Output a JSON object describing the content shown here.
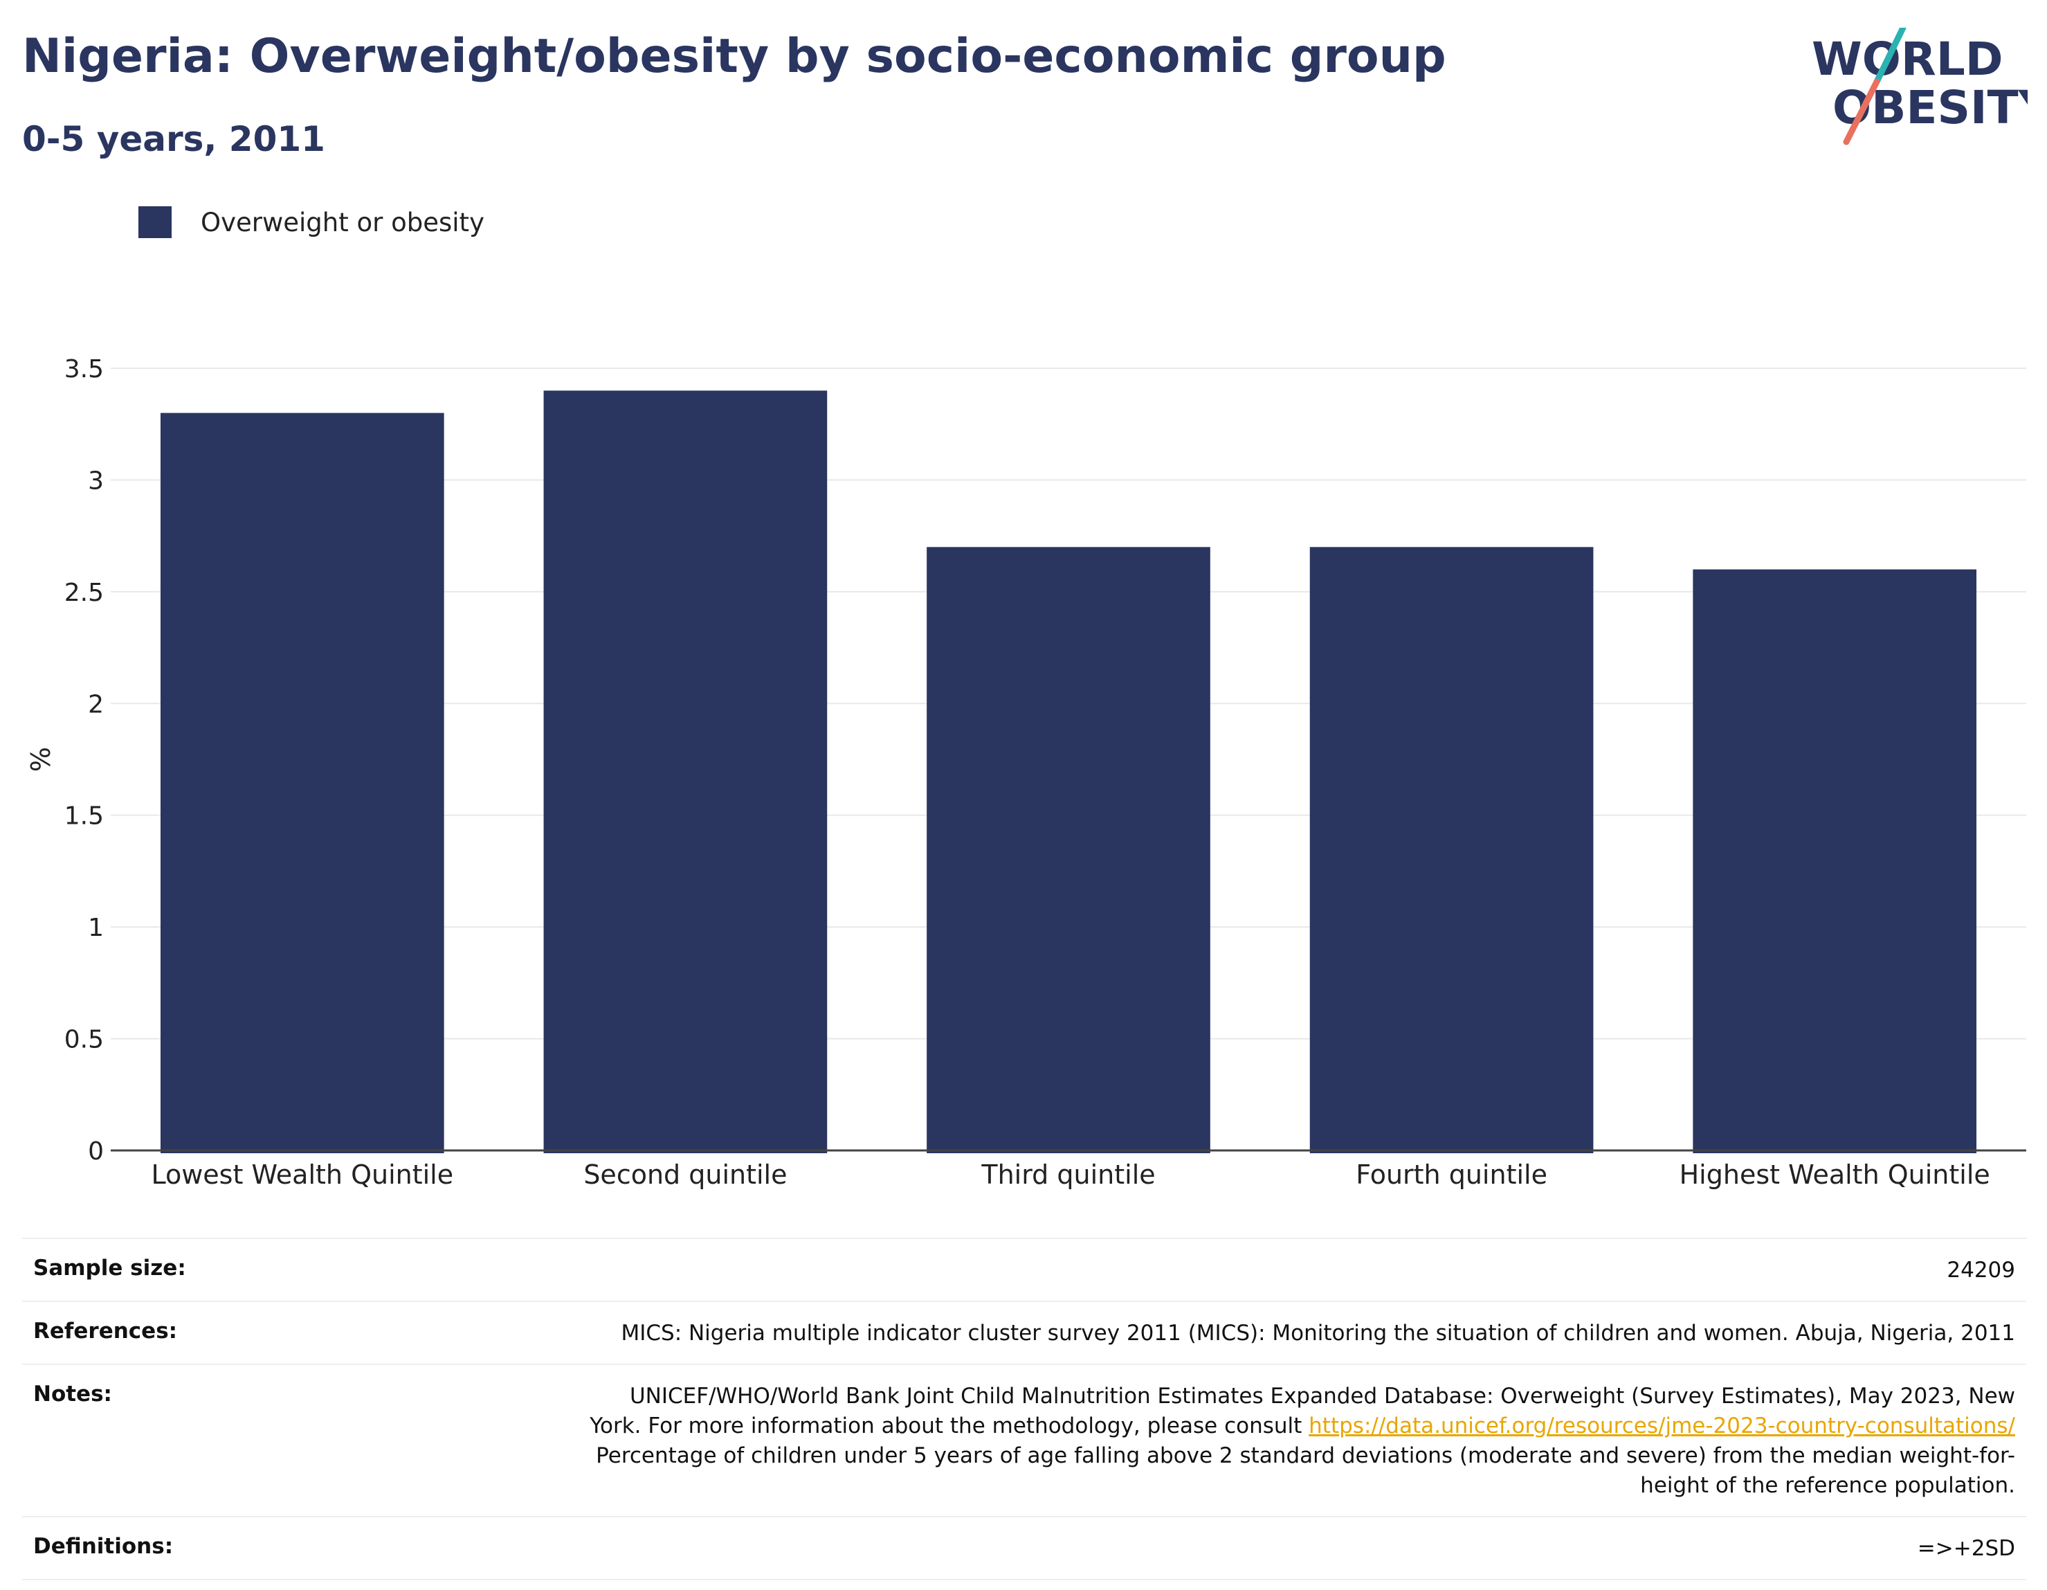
{
  "title": "Nigeria: Overweight/obesity by socio-economic group",
  "subtitle": "0-5 years, 2011",
  "logo": {
    "line1": "WORLD",
    "line2": "OBESITY",
    "colors": {
      "text": "#2a3560",
      "teal": "#2ab3b1",
      "coral": "#e8705f"
    }
  },
  "legend": {
    "label": "Overweight or obesity",
    "color": "#2a3560"
  },
  "chart_data": {
    "type": "bar",
    "categories": [
      "Lowest Wealth Quintile",
      "Second quintile",
      "Third quintile",
      "Fourth quintile",
      "Highest Wealth Quintile"
    ],
    "series": [
      {
        "name": "Overweight or obesity",
        "values": [
          3.3,
          3.4,
          2.7,
          2.7,
          2.6
        ],
        "color": "#2a3560"
      }
    ],
    "ylabel": "%",
    "ylim": [
      0,
      3.5
    ],
    "yticks": [
      0,
      0.5,
      1,
      1.5,
      2,
      2.5,
      3,
      3.5
    ],
    "ytick_labels": [
      "0",
      "0.5",
      "1",
      "1.5",
      "2",
      "2.5",
      "3",
      "3.5"
    ],
    "grid": true,
    "legend_position": "top-left"
  },
  "info": {
    "sample_size": {
      "label": "Sample size:",
      "value": "24209"
    },
    "references": {
      "label": "References:",
      "value": "MICS: Nigeria multiple indicator cluster survey 2011 (MICS): Monitoring the situation of children and women. Abuja, Nigeria, 2011"
    },
    "notes": {
      "label": "Notes:",
      "line1": "UNICEF/WHO/World Bank Joint Child Malnutrition Estimates Expanded Database: Overweight (Survey Estimates), May 2023, New",
      "line2_prefix": "York. For more information about the methodology, please consult ",
      "link": "https://data.unicef.org/resources/jme-2023-country-consultations/",
      "line3": "Percentage of children under 5 years of age falling above 2 standard deviations (moderate and severe) from the median weight-for-",
      "line4": "height of the reference population."
    },
    "definitions": {
      "label": "Definitions:",
      "value": "=>+2SD"
    }
  }
}
